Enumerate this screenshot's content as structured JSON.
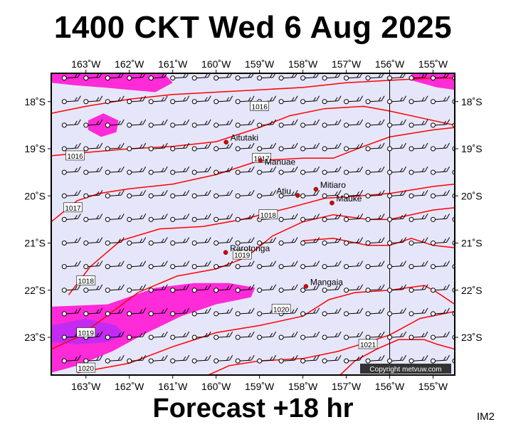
{
  "title": "1400 CKT Wed 6 Aug 2025",
  "footer": "Forecast +18 hr",
  "tag": "IM2",
  "copyright": "Copyright metvuw.com",
  "map": {
    "lon_range": [
      -163.8,
      -154.5
    ],
    "lat_range": [
      -23.8,
      -17.4
    ],
    "lon_ticks": [
      {
        "value": -163,
        "label": "163˚W"
      },
      {
        "value": -162,
        "label": "162˚W"
      },
      {
        "value": -161,
        "label": "161˚W"
      },
      {
        "value": -160,
        "label": "160˚W"
      },
      {
        "value": -159,
        "label": "159˚W"
      },
      {
        "value": -158,
        "label": "158˚W"
      },
      {
        "value": -157,
        "label": "157˚W"
      },
      {
        "value": -156,
        "label": "156˚W"
      },
      {
        "value": -155,
        "label": "155˚W"
      }
    ],
    "lat_ticks": [
      {
        "value": -18,
        "label": "18˚S"
      },
      {
        "value": -19,
        "label": "19˚S"
      },
      {
        "value": -20,
        "label": "20˚S"
      },
      {
        "value": -21,
        "label": "21˚S"
      },
      {
        "value": -22,
        "label": "22˚S"
      },
      {
        "value": -23,
        "label": "23˚S"
      }
    ],
    "meridian_line_lon": -156,
    "colors": {
      "background": "#e6e6fa",
      "rain_light": "#ff2ad8",
      "rain_heavy": "#c42bf2",
      "isobar": "#ff0000",
      "place_dot": "#e00000",
      "wind": "#000000",
      "copyright_bg": "#333333"
    },
    "places": [
      {
        "name": "Aitutaki",
        "lon": -159.77,
        "lat": -18.86
      },
      {
        "name": "Manuae",
        "lon": -158.98,
        "lat": -19.25
      },
      {
        "name": "Mitiaro",
        "lon": -157.7,
        "lat": -19.86
      },
      {
        "name": "Atiu",
        "lon": -158.12,
        "lat": -19.99
      },
      {
        "name": "Mauke",
        "lon": -157.33,
        "lat": -20.15
      },
      {
        "name": "Rarotonga",
        "lon": -159.78,
        "lat": -21.2
      },
      {
        "name": "Mangaia",
        "lon": -157.93,
        "lat": -21.92
      }
    ],
    "isobar_labels": [
      "1016",
      "1016",
      "1017",
      "1017",
      "1018",
      "1018",
      "1019",
      "1019",
      "1020",
      "1020",
      "1021"
    ],
    "isobars": [
      {
        "value": 1016,
        "points": [
          [
            -163.8,
            -18.25
          ],
          [
            -163.0,
            -18.1
          ],
          [
            -162.0,
            -17.95
          ],
          [
            -161.0,
            -17.85
          ],
          [
            -160.0,
            -17.8
          ],
          [
            -159.0,
            -17.75
          ],
          [
            -158.0,
            -17.7
          ],
          [
            -157.0,
            -17.6
          ],
          [
            -156.0,
            -17.55
          ],
          [
            -155.0,
            -17.5
          ],
          [
            -154.5,
            -17.5
          ]
        ]
      },
      {
        "value": 1016,
        "points": [
          [
            -163.8,
            -19.15
          ],
          [
            -163.0,
            -19.08
          ],
          [
            -162.0,
            -19.0
          ],
          [
            -161.0,
            -18.95
          ],
          [
            -160.0,
            -18.85
          ],
          [
            -159.0,
            -18.55
          ],
          [
            -158.3,
            -18.3
          ],
          [
            -157.5,
            -18.15
          ],
          [
            -156.6,
            -18.1
          ],
          [
            -156.0,
            -18.2
          ],
          [
            -155.0,
            -18.4
          ],
          [
            -154.5,
            -18.5
          ]
        ]
      },
      {
        "value": 1017,
        "points": [
          [
            -163.8,
            -20.55
          ],
          [
            -163.2,
            -20.1
          ],
          [
            -162.7,
            -19.95
          ],
          [
            -162.0,
            -19.85
          ],
          [
            -161.0,
            -19.75
          ],
          [
            -160.0,
            -19.55
          ],
          [
            -159.0,
            -19.25
          ],
          [
            -158.0,
            -19.2
          ],
          [
            -157.3,
            -19.2
          ],
          [
            -156.6,
            -18.95
          ],
          [
            -156.0,
            -18.75
          ],
          [
            -155.0,
            -18.6
          ],
          [
            -154.5,
            -18.55
          ]
        ]
      },
      {
        "value": 1018,
        "points": [
          [
            -163.4,
            -22.1
          ],
          [
            -162.9,
            -21.5
          ],
          [
            -162.2,
            -20.95
          ],
          [
            -161.3,
            -20.7
          ],
          [
            -160.3,
            -20.65
          ],
          [
            -159.4,
            -20.5
          ],
          [
            -158.3,
            -20.25
          ],
          [
            -157.5,
            -20.05
          ],
          [
            -156.7,
            -20.0
          ],
          [
            -156.0,
            -19.95
          ],
          [
            -155.0,
            -19.8
          ],
          [
            -154.5,
            -19.75
          ]
        ]
      },
      {
        "value": 1019,
        "points": [
          [
            -163.8,
            -23.25
          ],
          [
            -163.2,
            -23.0
          ],
          [
            -162.6,
            -22.6
          ],
          [
            -161.8,
            -22.05
          ],
          [
            -160.9,
            -21.7
          ],
          [
            -160.0,
            -21.55
          ],
          [
            -159.3,
            -21.3
          ],
          [
            -158.7,
            -20.85
          ],
          [
            -158.0,
            -20.55
          ],
          [
            -157.3,
            -20.4
          ],
          [
            -156.5,
            -20.5
          ],
          [
            -156.0,
            -20.5
          ],
          [
            -155.0,
            -20.3
          ],
          [
            -154.5,
            -20.25
          ]
        ]
      },
      {
        "value": 1019,
        "points": [
          [
            -158.0,
            -20.95
          ],
          [
            -157.3,
            -20.9
          ],
          [
            -156.5,
            -21.05
          ],
          [
            -156.0,
            -21.05
          ],
          [
            -155.5,
            -20.9
          ],
          [
            -155.0,
            -21.05
          ],
          [
            -154.5,
            -21.1
          ]
        ]
      },
      {
        "value": 1020,
        "points": [
          [
            -163.2,
            -23.75
          ],
          [
            -162.0,
            -23.55
          ],
          [
            -161.0,
            -23.2
          ],
          [
            -160.0,
            -22.9
          ],
          [
            -159.0,
            -22.75
          ],
          [
            -158.0,
            -22.55
          ],
          [
            -157.4,
            -22.2
          ],
          [
            -156.8,
            -22.05
          ],
          [
            -156.0,
            -22.0
          ],
          [
            -155.2,
            -21.9
          ],
          [
            -154.9,
            -22.05
          ],
          [
            -154.5,
            -22.3
          ]
        ]
      },
      {
        "value": 1021,
        "points": [
          [
            -160.3,
            -23.85
          ],
          [
            -159.7,
            -23.6
          ],
          [
            -159.0,
            -23.5
          ],
          [
            -158.0,
            -23.45
          ],
          [
            -157.2,
            -23.3
          ],
          [
            -156.5,
            -23.1
          ],
          [
            -156.0,
            -22.95
          ],
          [
            -155.3,
            -22.6
          ],
          [
            -154.5,
            -22.45
          ]
        ]
      },
      {
        "value": 1021,
        "points": [
          [
            -157.2,
            -23.85
          ],
          [
            -156.8,
            -23.5
          ],
          [
            -156.3,
            -23.25
          ],
          [
            -155.8,
            -23.05
          ],
          [
            -155.2,
            -23.05
          ],
          [
            -154.9,
            -23.15
          ],
          [
            -154.5,
            -23.25
          ]
        ]
      }
    ],
    "isobar_label_positions": [
      {
        "text": "1016",
        "lon": -159.0,
        "lat": -18.1
      },
      {
        "text": "1016",
        "lon": -163.25,
        "lat": -19.15
      },
      {
        "text": "1017",
        "lon": -158.95,
        "lat": -19.2
      },
      {
        "text": "1017",
        "lon": -163.3,
        "lat": -20.25
      },
      {
        "text": "1018",
        "lon": -158.8,
        "lat": -20.4
      },
      {
        "text": "1018",
        "lon": -163.0,
        "lat": -21.8
      },
      {
        "text": "1019",
        "lon": -159.4,
        "lat": -21.25
      },
      {
        "text": "1019",
        "lon": -163.0,
        "lat": -22.9
      },
      {
        "text": "1020",
        "lon": -158.5,
        "lat": -22.4
      },
      {
        "text": "1020",
        "lon": -163.0,
        "lat": -23.65
      },
      {
        "text": "1021",
        "lon": -156.5,
        "lat": -23.15
      }
    ],
    "rain_areas": [
      {
        "intensity": "light",
        "points": [
          [
            -163.8,
            -17.4
          ],
          [
            -161.2,
            -17.4
          ],
          [
            -161.0,
            -17.6
          ],
          [
            -161.4,
            -17.8
          ],
          [
            -162.0,
            -17.75
          ],
          [
            -162.6,
            -17.7
          ],
          [
            -163.3,
            -17.65
          ],
          [
            -163.8,
            -17.6
          ]
        ]
      },
      {
        "intensity": "light",
        "points": [
          [
            -155.5,
            -17.4
          ],
          [
            -154.5,
            -17.4
          ],
          [
            -154.5,
            -17.75
          ],
          [
            -154.9,
            -17.7
          ],
          [
            -155.5,
            -17.55
          ]
        ]
      },
      {
        "intensity": "light",
        "points": [
          [
            -162.95,
            -18.4
          ],
          [
            -162.6,
            -18.25
          ],
          [
            -162.25,
            -18.4
          ],
          [
            -162.3,
            -18.65
          ],
          [
            -162.65,
            -18.75
          ],
          [
            -162.95,
            -18.6
          ]
        ]
      },
      {
        "intensity": "light",
        "points": [
          [
            -163.8,
            -22.35
          ],
          [
            -162.5,
            -22.3
          ],
          [
            -161.4,
            -21.95
          ],
          [
            -160.5,
            -21.85
          ],
          [
            -159.7,
            -21.85
          ],
          [
            -159.1,
            -21.95
          ],
          [
            -159.2,
            -22.15
          ],
          [
            -160.0,
            -22.3
          ],
          [
            -160.8,
            -22.55
          ],
          [
            -161.7,
            -22.95
          ],
          [
            -162.4,
            -23.3
          ],
          [
            -163.2,
            -23.6
          ],
          [
            -163.8,
            -23.75
          ]
        ]
      },
      {
        "intensity": "heavy",
        "points": [
          [
            -163.8,
            -22.75
          ],
          [
            -163.0,
            -22.6
          ],
          [
            -162.3,
            -22.75
          ],
          [
            -162.1,
            -22.95
          ],
          [
            -162.5,
            -23.1
          ],
          [
            -163.2,
            -23.15
          ],
          [
            -163.8,
            -23.1
          ]
        ]
      }
    ]
  }
}
